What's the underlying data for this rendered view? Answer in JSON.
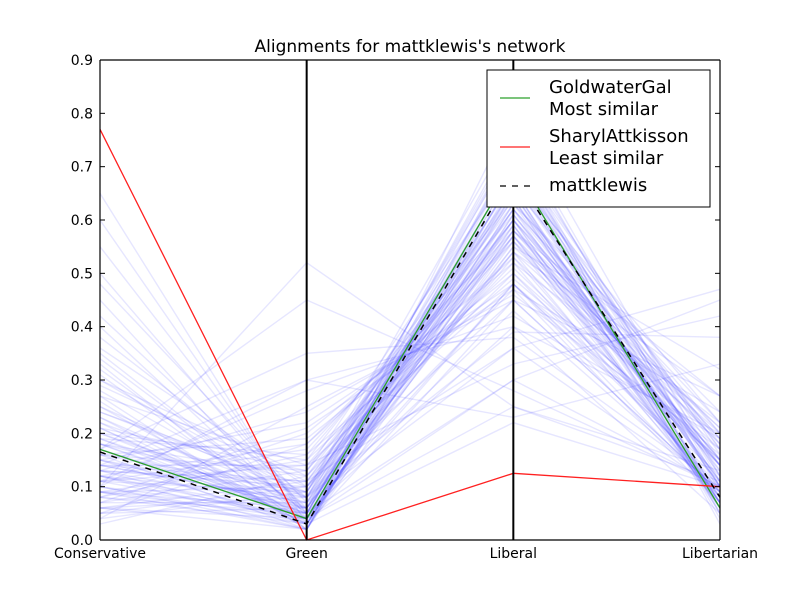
{
  "chart_data": {
    "type": "line",
    "title": "Alignments for mattklewis's network",
    "categories": [
      "Conservative",
      "Green",
      "Liberal",
      "Libertarian"
    ],
    "y_ticks": [
      "0.0",
      "0.1",
      "0.2",
      "0.3",
      "0.4",
      "0.5",
      "0.6",
      "0.7",
      "0.8",
      "0.9"
    ],
    "ylim": [
      0,
      0.9
    ],
    "grid": false,
    "legend_position": "top-right",
    "background_color": "#4040ff",
    "series": [
      {
        "name": "GoldwaterGal\nMost similar",
        "legend_lines": [
          "GoldwaterGal",
          "Most similar"
        ],
        "color": "#2ca02c",
        "style": "solid",
        "values": [
          0.17,
          0.04,
          0.7,
          0.06
        ]
      },
      {
        "name": "SharylAttkisson\nLeast similar",
        "legend_lines": [
          "SharylAttkisson",
          "Least similar"
        ],
        "color": "#ff2020",
        "style": "solid",
        "values": [
          0.77,
          0.0,
          0.125,
          0.1
        ]
      },
      {
        "name": "mattklewis",
        "legend_lines": [
          "mattklewis"
        ],
        "color": "#000000",
        "style": "dashed",
        "values": [
          0.165,
          0.03,
          0.69,
          0.08
        ]
      }
    ],
    "background": [
      [
        0.12,
        0.04,
        0.65,
        0.1
      ],
      [
        0.08,
        0.03,
        0.6,
        0.15
      ],
      [
        0.2,
        0.05,
        0.7,
        0.05
      ],
      [
        0.15,
        0.06,
        0.55,
        0.2
      ],
      [
        0.1,
        0.02,
        0.68,
        0.12
      ],
      [
        0.25,
        0.08,
        0.62,
        0.07
      ],
      [
        0.05,
        0.1,
        0.58,
        0.18
      ],
      [
        0.18,
        0.04,
        0.72,
        0.04
      ],
      [
        0.3,
        0.12,
        0.5,
        0.1
      ],
      [
        0.09,
        0.15,
        0.64,
        0.11
      ],
      [
        0.14,
        0.07,
        0.66,
        0.08
      ],
      [
        0.22,
        0.03,
        0.61,
        0.14
      ],
      [
        0.07,
        0.2,
        0.52,
        0.22
      ],
      [
        0.35,
        0.05,
        0.48,
        0.12
      ],
      [
        0.11,
        0.09,
        0.73,
        0.05
      ],
      [
        0.16,
        0.02,
        0.67,
        0.13
      ],
      [
        0.04,
        0.25,
        0.45,
        0.27
      ],
      [
        0.28,
        0.06,
        0.59,
        0.06
      ],
      [
        0.13,
        0.11,
        0.62,
        0.14
      ],
      [
        0.19,
        0.04,
        0.69,
        0.07
      ],
      [
        0.45,
        0.03,
        0.45,
        0.09
      ],
      [
        0.1,
        0.3,
        0.4,
        0.2
      ],
      [
        0.06,
        0.08,
        0.71,
        0.15
      ],
      [
        0.24,
        0.1,
        0.57,
        0.09
      ],
      [
        0.17,
        0.05,
        0.74,
        0.03
      ],
      [
        0.12,
        0.18,
        0.53,
        0.17
      ],
      [
        0.32,
        0.04,
        0.56,
        0.08
      ],
      [
        0.09,
        0.06,
        0.76,
        0.09
      ],
      [
        0.21,
        0.13,
        0.6,
        0.06
      ],
      [
        0.03,
        0.12,
        0.63,
        0.22
      ],
      [
        0.15,
        0.22,
        0.48,
        0.15
      ],
      [
        0.27,
        0.02,
        0.65,
        0.06
      ],
      [
        0.11,
        0.04,
        0.58,
        0.27
      ],
      [
        0.18,
        0.09,
        0.66,
        0.07
      ],
      [
        0.08,
        0.16,
        0.61,
        0.15
      ],
      [
        0.55,
        0.05,
        0.3,
        0.1
      ],
      [
        0.13,
        0.03,
        0.7,
        0.14
      ],
      [
        0.2,
        0.07,
        0.54,
        0.19
      ],
      [
        0.06,
        0.02,
        0.8,
        0.12
      ],
      [
        0.38,
        0.08,
        0.47,
        0.07
      ],
      [
        0.14,
        0.14,
        0.59,
        0.13
      ],
      [
        0.1,
        0.05,
        0.68,
        0.17
      ],
      [
        0.23,
        0.03,
        0.63,
        0.11
      ],
      [
        0.16,
        0.19,
        0.5,
        0.15
      ],
      [
        0.05,
        0.06,
        0.72,
        0.17
      ],
      [
        0.29,
        0.11,
        0.52,
        0.08
      ],
      [
        0.12,
        0.08,
        0.74,
        0.06
      ],
      [
        0.17,
        0.35,
        0.38,
        0.1
      ],
      [
        0.09,
        0.04,
        0.55,
        0.32
      ],
      [
        0.26,
        0.02,
        0.61,
        0.11
      ],
      [
        0.6,
        0.04,
        0.25,
        0.11
      ],
      [
        0.13,
        0.1,
        0.67,
        0.1
      ],
      [
        0.19,
        0.06,
        0.57,
        0.18
      ],
      [
        0.07,
        0.13,
        0.7,
        0.1
      ],
      [
        0.34,
        0.05,
        0.54,
        0.07
      ],
      [
        0.11,
        0.17,
        0.58,
        0.14
      ],
      [
        0.22,
        0.08,
        0.64,
        0.06
      ],
      [
        0.15,
        0.03,
        0.62,
        0.2
      ],
      [
        0.04,
        0.09,
        0.77,
        0.1
      ],
      [
        0.42,
        0.06,
        0.43,
        0.09
      ],
      [
        0.18,
        0.12,
        0.56,
        0.14
      ],
      [
        0.1,
        0.52,
        0.25,
        0.13
      ],
      [
        0.25,
        0.04,
        0.66,
        0.05
      ],
      [
        0.14,
        0.07,
        0.6,
        0.19
      ],
      [
        0.08,
        0.21,
        0.47,
        0.24
      ],
      [
        0.31,
        0.03,
        0.59,
        0.07
      ],
      [
        0.12,
        0.05,
        0.71,
        0.12
      ],
      [
        0.2,
        0.15,
        0.51,
        0.14
      ],
      [
        0.06,
        0.04,
        0.68,
        0.22
      ],
      [
        0.48,
        0.07,
        0.36,
        0.09
      ],
      [
        0.16,
        0.09,
        0.65,
        0.1
      ],
      [
        0.09,
        0.02,
        0.73,
        0.16
      ],
      [
        0.27,
        0.14,
        0.48,
        0.11
      ],
      [
        0.13,
        0.06,
        0.62,
        0.19
      ],
      [
        0.21,
        0.03,
        0.68,
        0.08
      ],
      [
        0.05,
        0.18,
        0.56,
        0.21
      ],
      [
        0.36,
        0.1,
        0.45,
        0.09
      ],
      [
        0.17,
        0.04,
        0.58,
        0.21
      ],
      [
        0.11,
        0.28,
        0.42,
        0.19
      ],
      [
        0.23,
        0.06,
        0.64,
        0.07
      ],
      [
        0.65,
        0.03,
        0.22,
        0.1
      ],
      [
        0.14,
        0.11,
        0.6,
        0.15
      ],
      [
        0.08,
        0.05,
        0.69,
        0.18
      ],
      [
        0.3,
        0.08,
        0.53,
        0.09
      ],
      [
        0.12,
        0.02,
        0.66,
        0.2
      ],
      [
        0.19,
        0.16,
        0.49,
        0.16
      ],
      [
        0.07,
        0.07,
        0.75,
        0.11
      ],
      [
        0.4,
        0.04,
        0.48,
        0.08
      ],
      [
        0.16,
        0.13,
        0.57,
        0.14
      ],
      [
        0.1,
        0.03,
        0.63,
        0.24
      ],
      [
        0.24,
        0.09,
        0.6,
        0.07
      ],
      [
        0.13,
        0.24,
        0.46,
        0.17
      ],
      [
        0.18,
        0.05,
        0.7,
        0.07
      ],
      [
        0.09,
        0.1,
        0.54,
        0.27
      ],
      [
        0.33,
        0.02,
        0.57,
        0.08
      ],
      [
        0.15,
        0.08,
        0.39,
        0.38
      ],
      [
        0.11,
        0.14,
        0.33,
        0.42
      ],
      [
        0.21,
        0.04,
        0.3,
        0.45
      ],
      [
        0.06,
        0.11,
        0.36,
        0.47
      ],
      [
        0.5,
        0.05,
        0.4,
        0.05
      ],
      [
        0.14,
        0.3,
        0.23,
        0.33
      ],
      [
        0.17,
        0.45,
        0.28,
        0.1
      ]
    ]
  }
}
